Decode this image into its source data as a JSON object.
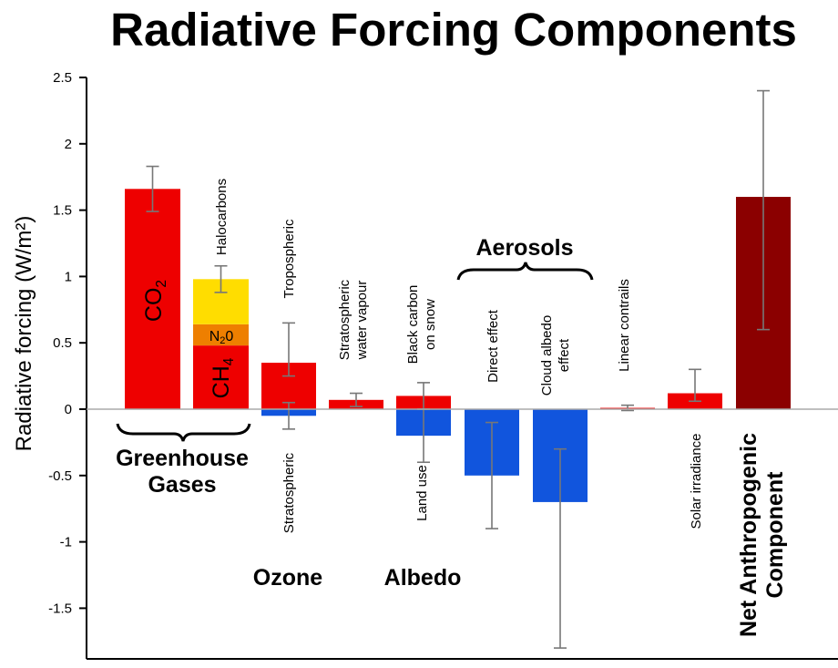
{
  "chart_data": {
    "type": "bar",
    "title": "Radiative Forcing Components",
    "ylabel": "Radiative forcing (W/m²)",
    "ylim": [
      -1.9,
      2.5
    ],
    "yticks": [
      {
        "value": 2.5,
        "label": "2.5"
      },
      {
        "value": 2,
        "label": "2"
      },
      {
        "value": 1.5,
        "label": "1.5"
      },
      {
        "value": 1,
        "label": "1"
      },
      {
        "value": 0.5,
        "label": "0.5"
      },
      {
        "value": 0,
        "label": "0"
      },
      {
        "value": -0.5,
        "label": "-0.5"
      },
      {
        "value": -1,
        "label": "-1"
      },
      {
        "value": -1.5,
        "label": "-1.5"
      }
    ],
    "categories": [
      "CO2",
      "CH4 / N2O / Halocarbons",
      "Ozone",
      "Stratospheric water vapour",
      "Albedo",
      "Aerosol direct effect",
      "Aerosol cloud albedo effect",
      "Linear contrails",
      "Solar irradiance",
      "Net Anthropogenic Component"
    ],
    "bars": [
      {
        "label": "CO",
        "label_sub": "2",
        "value": 1.66,
        "err_low": 1.49,
        "err_high": 1.83,
        "color": "#ee0000"
      },
      {
        "label": "CH",
        "label_sub": "4",
        "value": 0.48,
        "color": "#ee0000"
      },
      {
        "label": "N",
        "label_sub": "2",
        "label_end": "0",
        "value": 0.16,
        "base": 0.48,
        "color": "#ee7f00"
      },
      {
        "label": "Halocarbons",
        "value": 0.34,
        "base": 0.64,
        "err_low": 0.88,
        "err_high": 1.08,
        "color": "#ffdd00"
      },
      {
        "label": "Tropospheric",
        "value": 0.35,
        "err_low": 0.25,
        "err_high": 0.65,
        "color": "#ee0000"
      },
      {
        "label": "Stratospheric",
        "value": -0.05,
        "err_low": -0.15,
        "err_high": 0.05,
        "color": "#1155dd"
      },
      {
        "label": "Stratospheric water vapour",
        "value": 0.07,
        "err_low": 0.02,
        "err_high": 0.12,
        "color": "#ee0000"
      },
      {
        "label": "Black carbon on snow",
        "value": 0.1,
        "err_low": 0.0,
        "err_high": 0.2,
        "color": "#ee0000"
      },
      {
        "label": "Land use",
        "value": -0.2,
        "err_low": -0.4,
        "err_high": 0.0,
        "color": "#1155dd"
      },
      {
        "label": "Direct effect",
        "value": -0.5,
        "err_low": -0.9,
        "err_high": -0.1,
        "color": "#1155dd"
      },
      {
        "label": "Cloud albedo effect",
        "value": -0.7,
        "err_low": -1.8,
        "err_high": -0.3,
        "color": "#1155dd"
      },
      {
        "label": "Linear contrails",
        "value": 0.01,
        "err_low": -0.01,
        "err_high": 0.03,
        "color": "#ee0000"
      },
      {
        "label": "Solar irradiance",
        "value": 0.12,
        "err_low": 0.06,
        "err_high": 0.3,
        "color": "#ee0000"
      },
      {
        "label": "Net Anthropogenic Component",
        "value": 1.6,
        "err_low": 0.6,
        "err_high": 2.4,
        "color": "#8b0000"
      }
    ],
    "group_labels": {
      "greenhouse": "Greenhouse Gases",
      "greenhouse_line1": "Greenhouse",
      "greenhouse_line2": "Gases",
      "ozone": "Ozone",
      "albedo": "Albedo",
      "aerosols": "Aerosols"
    },
    "label_lines": {
      "strat_wv_1": "Stratospheric",
      "strat_wv_2": "water vapour",
      "bc_1": "Black carbon",
      "bc_2": "on snow",
      "cloud_1": "Cloud albedo",
      "cloud_2": "effect",
      "net_1": "Net Anthropogenic",
      "net_2": "Component"
    },
    "grid": false,
    "legend": "none"
  }
}
